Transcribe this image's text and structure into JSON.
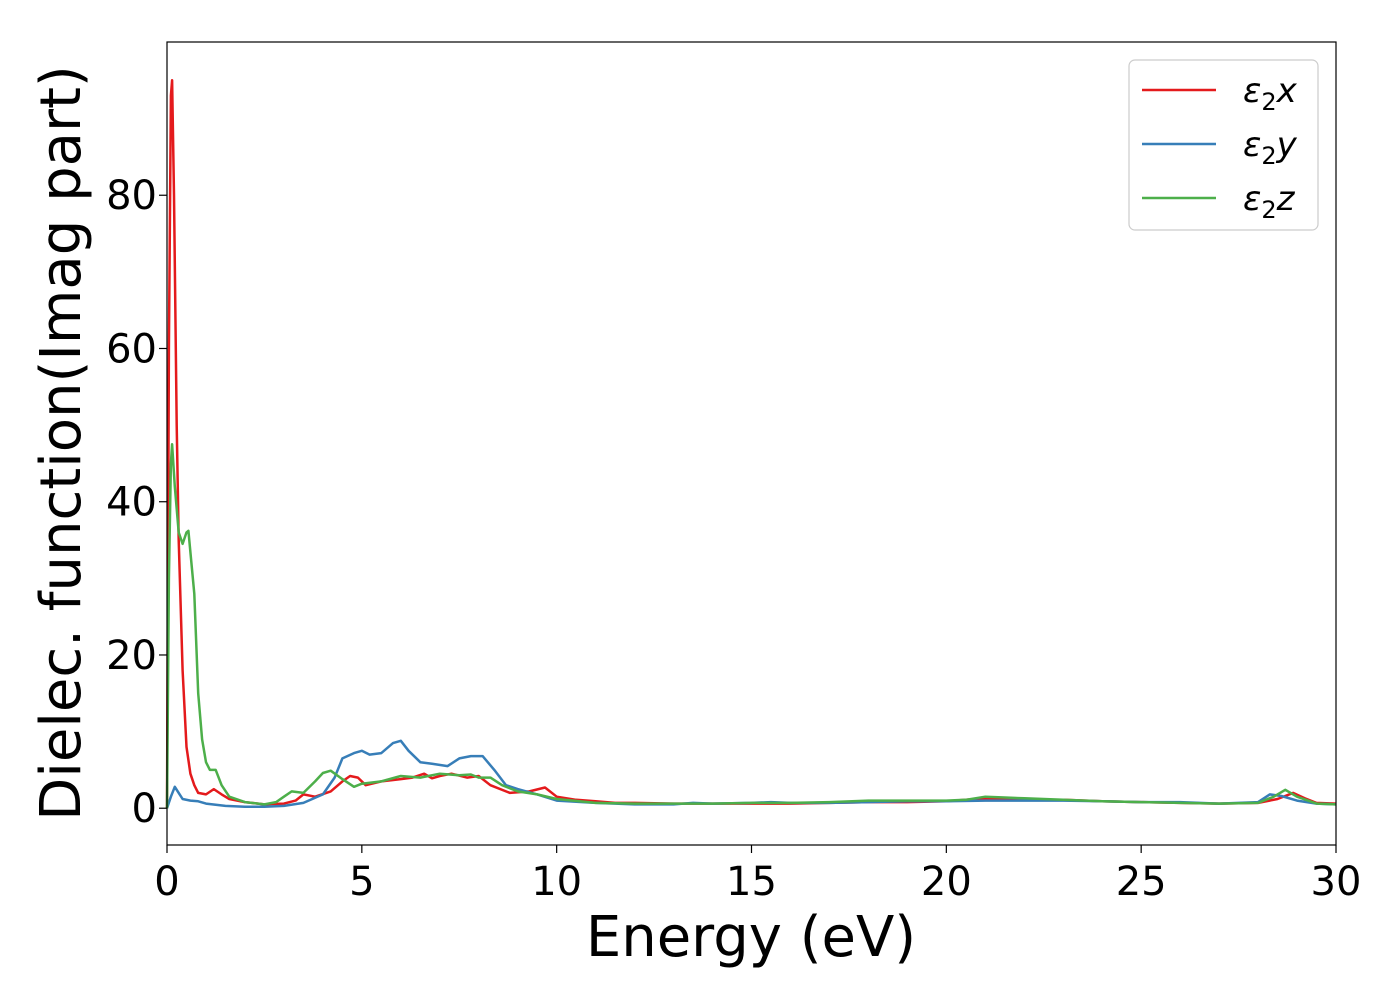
{
  "chart_data": {
    "type": "line",
    "title": "",
    "xlabel": "Energy (eV)",
    "ylabel": "Dielec. function(Imag part)",
    "xlim": [
      0,
      30
    ],
    "ylim": [
      -4.8,
      100
    ],
    "xticks": [
      0,
      5,
      10,
      15,
      20,
      25,
      30
    ],
    "yticks": [
      0,
      20,
      40,
      60,
      80
    ],
    "grid": false,
    "legend_position": "top-right",
    "series": [
      {
        "name": "ε₂x",
        "legend_base": "ε",
        "legend_sub": "2",
        "legend_var": "x",
        "color": "#e41a1c",
        "points": [
          [
            0,
            0
          ],
          [
            0.05,
            60
          ],
          [
            0.1,
            93
          ],
          [
            0.13,
            95
          ],
          [
            0.18,
            80
          ],
          [
            0.25,
            50
          ],
          [
            0.3,
            35
          ],
          [
            0.4,
            18
          ],
          [
            0.5,
            8
          ],
          [
            0.6,
            4.5
          ],
          [
            0.7,
            3
          ],
          [
            0.8,
            2
          ],
          [
            1.0,
            1.8
          ],
          [
            1.2,
            2.5
          ],
          [
            1.4,
            1.8
          ],
          [
            1.6,
            1.2
          ],
          [
            2.0,
            0.8
          ],
          [
            2.5,
            0.5
          ],
          [
            3.0,
            0.6
          ],
          [
            3.3,
            1.0
          ],
          [
            3.5,
            1.8
          ],
          [
            3.8,
            1.5
          ],
          [
            4.2,
            2.2
          ],
          [
            4.5,
            3.5
          ],
          [
            4.7,
            4.2
          ],
          [
            4.9,
            4.0
          ],
          [
            5.1,
            3.0
          ],
          [
            5.5,
            3.5
          ],
          [
            6.0,
            3.8
          ],
          [
            6.3,
            4.0
          ],
          [
            6.6,
            4.5
          ],
          [
            6.8,
            3.9
          ],
          [
            7.0,
            4.2
          ],
          [
            7.3,
            4.5
          ],
          [
            7.7,
            4.0
          ],
          [
            8.0,
            4.2
          ],
          [
            8.3,
            3.0
          ],
          [
            8.8,
            2.0
          ],
          [
            9.3,
            2.2
          ],
          [
            9.7,
            2.7
          ],
          [
            10.0,
            1.5
          ],
          [
            10.5,
            1.1
          ],
          [
            11.0,
            0.9
          ],
          [
            11.5,
            0.7
          ],
          [
            12.0,
            0.7
          ],
          [
            13.0,
            0.6
          ],
          [
            14.0,
            0.6
          ],
          [
            15.0,
            0.6
          ],
          [
            16.0,
            0.6
          ],
          [
            17.0,
            0.7
          ],
          [
            18.0,
            0.8
          ],
          [
            19.0,
            0.8
          ],
          [
            20.0,
            0.9
          ],
          [
            20.5,
            1.1
          ],
          [
            21.0,
            1.3
          ],
          [
            21.5,
            1.2
          ],
          [
            22.0,
            1.2
          ],
          [
            22.5,
            1.1
          ],
          [
            23.0,
            1.1
          ],
          [
            24.0,
            0.9
          ],
          [
            25.0,
            0.8
          ],
          [
            26.0,
            0.7
          ],
          [
            27.0,
            0.6
          ],
          [
            28.0,
            0.7
          ],
          [
            28.5,
            1.2
          ],
          [
            28.9,
            2.0
          ],
          [
            29.2,
            1.3
          ],
          [
            29.5,
            0.7
          ],
          [
            30.0,
            0.6
          ]
        ]
      },
      {
        "name": "ε₂y",
        "legend_base": "ε",
        "legend_sub": "2",
        "legend_var": "y",
        "color": "#377eb8",
        "points": [
          [
            0,
            0
          ],
          [
            0.1,
            1.5
          ],
          [
            0.2,
            2.8
          ],
          [
            0.3,
            2.0
          ],
          [
            0.4,
            1.2
          ],
          [
            0.6,
            1.0
          ],
          [
            0.8,
            0.9
          ],
          [
            1.0,
            0.6
          ],
          [
            1.5,
            0.3
          ],
          [
            2.0,
            0.2
          ],
          [
            2.5,
            0.2
          ],
          [
            3.0,
            0.3
          ],
          [
            3.5,
            0.7
          ],
          [
            4.0,
            1.8
          ],
          [
            4.3,
            4.0
          ],
          [
            4.5,
            6.5
          ],
          [
            4.8,
            7.2
          ],
          [
            5.0,
            7.5
          ],
          [
            5.2,
            7.0
          ],
          [
            5.5,
            7.2
          ],
          [
            5.8,
            8.5
          ],
          [
            6.0,
            8.8
          ],
          [
            6.2,
            7.5
          ],
          [
            6.5,
            6.0
          ],
          [
            6.8,
            5.8
          ],
          [
            7.2,
            5.5
          ],
          [
            7.5,
            6.5
          ],
          [
            7.8,
            6.8
          ],
          [
            8.1,
            6.8
          ],
          [
            8.4,
            5.0
          ],
          [
            8.7,
            3.0
          ],
          [
            9.0,
            2.5
          ],
          [
            9.5,
            1.8
          ],
          [
            10.0,
            1.0
          ],
          [
            11.0,
            0.7
          ],
          [
            12.0,
            0.5
          ],
          [
            13.0,
            0.5
          ],
          [
            13.5,
            0.7
          ],
          [
            14.0,
            0.6
          ],
          [
            15.0,
            0.7
          ],
          [
            15.5,
            0.8
          ],
          [
            16.0,
            0.7
          ],
          [
            17.0,
            0.7
          ],
          [
            18.0,
            0.8
          ],
          [
            19.0,
            0.9
          ],
          [
            20.0,
            0.9
          ],
          [
            21.0,
            1.0
          ],
          [
            22.0,
            1.0
          ],
          [
            23.0,
            1.0
          ],
          [
            24.0,
            0.9
          ],
          [
            25.0,
            0.8
          ],
          [
            26.0,
            0.8
          ],
          [
            27.0,
            0.6
          ],
          [
            28.0,
            0.8
          ],
          [
            28.3,
            1.8
          ],
          [
            28.6,
            1.6
          ],
          [
            29.0,
            1.0
          ],
          [
            29.5,
            0.6
          ],
          [
            30.0,
            0.5
          ]
        ]
      },
      {
        "name": "ε₂z",
        "legend_base": "ε",
        "legend_sub": "2",
        "legend_var": "z",
        "color": "#4daf4a",
        "points": [
          [
            0,
            0
          ],
          [
            0.05,
            30
          ],
          [
            0.1,
            45
          ],
          [
            0.13,
            47.5
          ],
          [
            0.2,
            42
          ],
          [
            0.3,
            36
          ],
          [
            0.4,
            34.5
          ],
          [
            0.5,
            36
          ],
          [
            0.55,
            36.2
          ],
          [
            0.7,
            28
          ],
          [
            0.8,
            15
          ],
          [
            0.9,
            9
          ],
          [
            1.0,
            6
          ],
          [
            1.1,
            5
          ],
          [
            1.25,
            5
          ],
          [
            1.4,
            3
          ],
          [
            1.6,
            1.5
          ],
          [
            2.0,
            0.8
          ],
          [
            2.5,
            0.5
          ],
          [
            2.8,
            0.8
          ],
          [
            3.0,
            1.5
          ],
          [
            3.2,
            2.2
          ],
          [
            3.5,
            2.0
          ],
          [
            3.8,
            3.5
          ],
          [
            4.0,
            4.6
          ],
          [
            4.2,
            4.9
          ],
          [
            4.5,
            3.8
          ],
          [
            4.8,
            2.8
          ],
          [
            5.0,
            3.2
          ],
          [
            5.5,
            3.5
          ],
          [
            6.0,
            4.2
          ],
          [
            6.5,
            4.0
          ],
          [
            7.0,
            4.5
          ],
          [
            7.5,
            4.3
          ],
          [
            7.8,
            4.4
          ],
          [
            8.0,
            4.0
          ],
          [
            8.3,
            4.0
          ],
          [
            8.6,
            3.0
          ],
          [
            9.0,
            2.2
          ],
          [
            9.5,
            1.8
          ],
          [
            10.0,
            1.2
          ],
          [
            11.0,
            0.7
          ],
          [
            12.0,
            0.6
          ],
          [
            13.0,
            0.6
          ],
          [
            14.0,
            0.6
          ],
          [
            15.0,
            0.7
          ],
          [
            16.0,
            0.7
          ],
          [
            17.0,
            0.8
          ],
          [
            18.0,
            1.0
          ],
          [
            19.0,
            1.0
          ],
          [
            20.0,
            1.0
          ],
          [
            20.5,
            1.1
          ],
          [
            21.0,
            1.5
          ],
          [
            21.5,
            1.4
          ],
          [
            22.0,
            1.3
          ],
          [
            23.0,
            1.1
          ],
          [
            24.0,
            0.9
          ],
          [
            25.0,
            0.8
          ],
          [
            26.0,
            0.7
          ],
          [
            27.0,
            0.6
          ],
          [
            28.0,
            0.7
          ],
          [
            28.4,
            1.5
          ],
          [
            28.7,
            2.4
          ],
          [
            29.0,
            1.5
          ],
          [
            29.5,
            0.6
          ],
          [
            30.0,
            0.5
          ]
        ]
      }
    ]
  }
}
